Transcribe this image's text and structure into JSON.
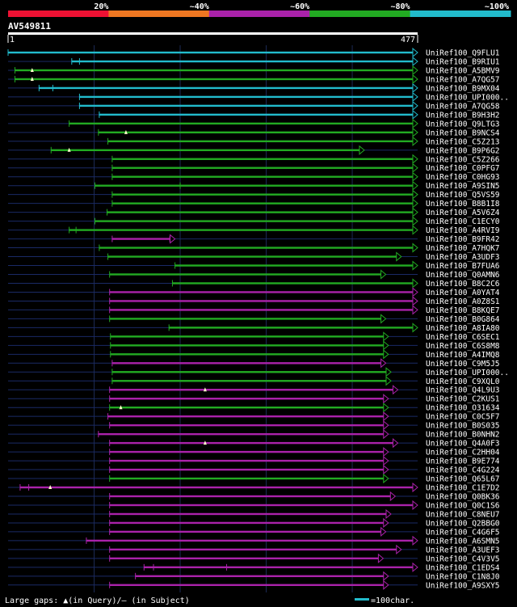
{
  "query": {
    "name": "AV549811",
    "start": "1",
    "end": "477",
    "length": 477
  },
  "identity_scale": {
    "labels": [
      "20%",
      "~40%",
      "~60%",
      "~80%",
      "~100%"
    ],
    "colors": [
      "#ee1133",
      "#ee7722",
      "#aa22aa",
      "#22aa22",
      "#22bbcc"
    ]
  },
  "legend": {
    "gaps_text": "Large gaps: ▲(in Query)/– (in Subject)",
    "scale_text": "=100char.",
    "scale_chars": 100
  },
  "hits": [
    {
      "name": "UniRef100_Q9FLU1",
      "class": "c100",
      "q_start": 1,
      "q_end": 477,
      "gaps": []
    },
    {
      "name": "UniRef100_B9RIU1",
      "class": "c100",
      "q_start": 75,
      "q_end": 477,
      "gaps": [
        {
          "type": "subject",
          "at": 84
        }
      ]
    },
    {
      "name": "UniRef100_A5BMV9",
      "class": "c80",
      "q_start": 9,
      "q_end": 477,
      "gaps": [
        {
          "type": "query",
          "at": 29
        }
      ]
    },
    {
      "name": "UniRef100_A7QG57",
      "class": "c80",
      "q_start": 9,
      "q_end": 477,
      "gaps": [
        {
          "type": "query",
          "at": 29
        }
      ]
    },
    {
      "name": "UniRef100_B9MX04",
      "class": "c100",
      "q_start": 37,
      "q_end": 477,
      "gaps": [
        {
          "type": "subject",
          "at": 53
        }
      ]
    },
    {
      "name": "UniRef100_UPI000..",
      "class": "c100",
      "q_start": 84,
      "q_end": 477,
      "gaps": []
    },
    {
      "name": "UniRef100_A7QG58",
      "class": "c100",
      "q_start": 84,
      "q_end": 477,
      "gaps": []
    },
    {
      "name": "UniRef100_B9H3H2",
      "class": "c100",
      "q_start": 107,
      "q_end": 477,
      "gaps": []
    },
    {
      "name": "UniRef100_Q9LTG3",
      "class": "c80",
      "q_start": 72,
      "q_end": 477,
      "gaps": []
    },
    {
      "name": "UniRef100_B9NCS4",
      "class": "c80",
      "q_start": 106,
      "q_end": 477,
      "gaps": [
        {
          "type": "query",
          "at": 138
        }
      ]
    },
    {
      "name": "UniRef100_C5Z213",
      "class": "c80",
      "q_start": 117,
      "q_end": 477,
      "gaps": []
    },
    {
      "name": "UniRef100_B9P6G2",
      "class": "c80",
      "q_start": 51,
      "q_end": 415,
      "gaps": [
        {
          "type": "query",
          "at": 72
        }
      ]
    },
    {
      "name": "UniRef100_C5Z266",
      "class": "c80",
      "q_start": 122,
      "q_end": 477,
      "gaps": []
    },
    {
      "name": "UniRef100_C0PFG7",
      "class": "c80",
      "q_start": 122,
      "q_end": 477,
      "gaps": []
    },
    {
      "name": "UniRef100_C0HG93",
      "class": "c80",
      "q_start": 122,
      "q_end": 477,
      "gaps": []
    },
    {
      "name": "UniRef100_A9SIN5",
      "class": "c80",
      "q_start": 102,
      "q_end": 477,
      "gaps": [
        {
          "type": "subject",
          "at": 201
        }
      ]
    },
    {
      "name": "UniRef100_Q5VS59",
      "class": "c80",
      "q_start": 122,
      "q_end": 477,
      "gaps": []
    },
    {
      "name": "UniRef100_B8B1I8",
      "class": "c80",
      "q_start": 122,
      "q_end": 477,
      "gaps": []
    },
    {
      "name": "UniRef100_A5V6Z4",
      "class": "c80",
      "q_start": 116,
      "q_end": 477,
      "gaps": []
    },
    {
      "name": "UniRef100_C1ECY0",
      "class": "c80",
      "q_start": 102,
      "q_end": 477,
      "gaps": []
    },
    {
      "name": "UniRef100_A4RVI9",
      "class": "c80",
      "q_start": 72,
      "q_end": 477,
      "gaps": [
        {
          "type": "subject",
          "at": 80
        }
      ]
    },
    {
      "name": "UniRef100_B9FR42",
      "class": "c60",
      "q_start": 122,
      "q_end": 195,
      "gaps": [
        {
          "type": "subject",
          "at": 189
        }
      ]
    },
    {
      "name": "UniRef100_A7HQK7",
      "class": "c80",
      "q_start": 107,
      "q_end": 477,
      "gaps": []
    },
    {
      "name": "UniRef100_A3UDF3",
      "class": "c80",
      "q_start": 117,
      "q_end": 458,
      "gaps": []
    },
    {
      "name": "UniRef100_B7FUA6",
      "class": "c80",
      "q_start": 195,
      "q_end": 477,
      "gaps": []
    },
    {
      "name": "UniRef100_Q0AMN6",
      "class": "c80",
      "q_start": 119,
      "q_end": 440,
      "gaps": []
    },
    {
      "name": "UniRef100_B8C2C6",
      "class": "c80",
      "q_start": 192,
      "q_end": 477,
      "gaps": []
    },
    {
      "name": "UniRef100_A0YAT4",
      "class": "c60",
      "q_start": 119,
      "q_end": 477,
      "gaps": []
    },
    {
      "name": "UniRef100_A0Z8S1",
      "class": "c60",
      "q_start": 119,
      "q_end": 477,
      "gaps": []
    },
    {
      "name": "UniRef100_B8KQE7",
      "class": "c60",
      "q_start": 119,
      "q_end": 477,
      "gaps": []
    },
    {
      "name": "UniRef100_B0G864",
      "class": "c80",
      "q_start": 119,
      "q_end": 440,
      "gaps": []
    },
    {
      "name": "UniRef100_A8IA80",
      "class": "c80",
      "q_start": 188,
      "q_end": 477,
      "gaps": []
    },
    {
      "name": "UniRef100_C6SEC1",
      "class": "c80",
      "q_start": 120,
      "q_end": 443,
      "gaps": []
    },
    {
      "name": "UniRef100_C6S8M8",
      "class": "c80",
      "q_start": 120,
      "q_end": 443,
      "gaps": []
    },
    {
      "name": "UniRef100_A4IMQ8",
      "class": "c80",
      "q_start": 120,
      "q_end": 443,
      "gaps": []
    },
    {
      "name": "UniRef100_C9M5J5",
      "class": "c60",
      "q_start": 122,
      "q_end": 440,
      "gaps": []
    },
    {
      "name": "UniRef100_UPI000..",
      "class": "c80",
      "q_start": 122,
      "q_end": 446,
      "gaps": []
    },
    {
      "name": "UniRef100_C9XQL0",
      "class": "c80",
      "q_start": 122,
      "q_end": 446,
      "gaps": []
    },
    {
      "name": "UniRef100_Q4L9U3",
      "class": "c60",
      "q_start": 119,
      "q_end": 454,
      "gaps": [
        {
          "type": "query",
          "at": 230
        }
      ]
    },
    {
      "name": "UniRef100_C2KUS1",
      "class": "c60",
      "q_start": 119,
      "q_end": 443,
      "gaps": []
    },
    {
      "name": "UniRef100_O31634",
      "class": "c80",
      "q_start": 119,
      "q_end": 443,
      "gaps": [
        {
          "type": "query",
          "at": 132
        }
      ]
    },
    {
      "name": "UniRef100_C0C5F7",
      "class": "c60",
      "q_start": 117,
      "q_end": 443,
      "gaps": []
    },
    {
      "name": "UniRef100_B0S035",
      "class": "c60",
      "q_start": 119,
      "q_end": 443,
      "gaps": []
    },
    {
      "name": "UniRef100_B0NHN2",
      "class": "c60",
      "q_start": 106,
      "q_end": 443,
      "gaps": []
    },
    {
      "name": "UniRef100_Q4A0F3",
      "class": "c60",
      "q_start": 119,
      "q_end": 454,
      "gaps": [
        {
          "type": "query",
          "at": 230
        }
      ]
    },
    {
      "name": "UniRef100_C2HH04",
      "class": "c60",
      "q_start": 119,
      "q_end": 443,
      "gaps": []
    },
    {
      "name": "UniRef100_B9E774",
      "class": "c60",
      "q_start": 119,
      "q_end": 443,
      "gaps": []
    },
    {
      "name": "UniRef100_C4G224",
      "class": "c60",
      "q_start": 119,
      "q_end": 443,
      "gaps": []
    },
    {
      "name": "UniRef100_Q65L67",
      "class": "c80",
      "q_start": 119,
      "q_end": 443,
      "gaps": []
    },
    {
      "name": "UniRef100_C1E7D2",
      "class": "c60",
      "q_start": 15,
      "q_end": 477,
      "gaps": [
        {
          "type": "subject",
          "at": 25
        },
        {
          "type": "query",
          "at": 50
        }
      ]
    },
    {
      "name": "UniRef100_Q0BK36",
      "class": "c60",
      "q_start": 119,
      "q_end": 451,
      "gaps": []
    },
    {
      "name": "UniRef100_Q0C1S6",
      "class": "c60",
      "q_start": 119,
      "q_end": 477,
      "gaps": []
    },
    {
      "name": "UniRef100_C8NEU7",
      "class": "c60",
      "q_start": 119,
      "q_end": 446,
      "gaps": []
    },
    {
      "name": "UniRef100_Q2BBG0",
      "class": "c60",
      "q_start": 119,
      "q_end": 443,
      "gaps": []
    },
    {
      "name": "UniRef100_C4G6F5",
      "class": "c60",
      "q_start": 119,
      "q_end": 440,
      "gaps": []
    },
    {
      "name": "UniRef100_A6SMN5",
      "class": "c60",
      "q_start": 92,
      "q_end": 477,
      "gaps": []
    },
    {
      "name": "UniRef100_A3UEF3",
      "class": "c60",
      "q_start": 119,
      "q_end": 458,
      "gaps": []
    },
    {
      "name": "UniRef100_C4V3V5",
      "class": "c60",
      "q_start": 119,
      "q_end": 437,
      "gaps": []
    },
    {
      "name": "UniRef100_C1EDS4",
      "class": "c60",
      "q_start": 159,
      "q_end": 477,
      "gaps": [
        {
          "type": "subject",
          "at": 170
        },
        {
          "type": "subject",
          "at": 255
        }
      ]
    },
    {
      "name": "UniRef100_C1N8J0",
      "class": "c60",
      "q_start": 149,
      "q_end": 443,
      "gaps": []
    },
    {
      "name": "UniRef100_A9SXY5",
      "class": "c60",
      "q_start": 119,
      "q_end": 443,
      "gaps": []
    }
  ]
}
